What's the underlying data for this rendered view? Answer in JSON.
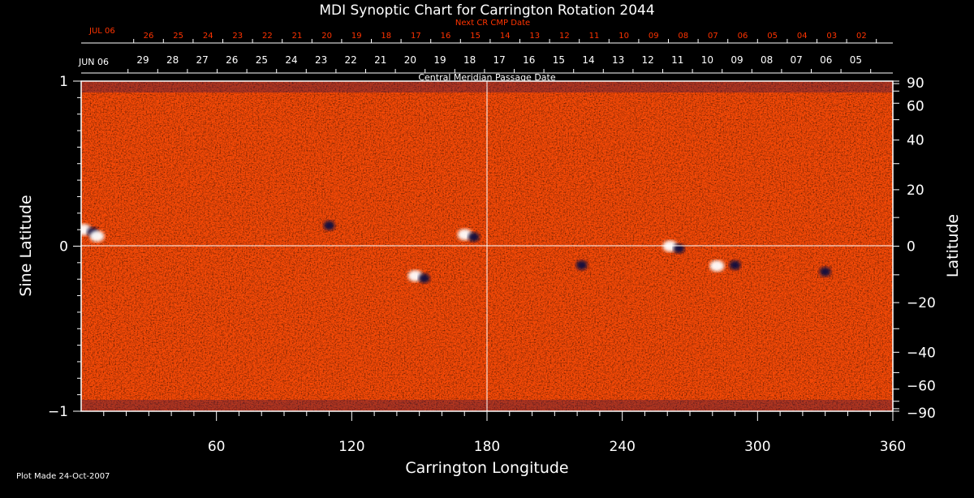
{
  "chart_data": {
    "type": "heatmap",
    "title": "MDI Synoptic Chart for Carrington Rotation 2044",
    "xlabel": "Carrington Longitude",
    "ylabel": "Sine Latitude",
    "y2label": "Latitude",
    "xlim": [
      0,
      360
    ],
    "ylim": [
      -1,
      1
    ],
    "x_ticks": [
      60,
      120,
      180,
      240,
      300,
      360
    ],
    "y_ticks": [
      {
        "value": 1,
        "label": "1"
      },
      {
        "value": 0,
        "label": "0"
      },
      {
        "value": -1,
        "label": "−1"
      }
    ],
    "lat_ticks": [
      {
        "deg": 90,
        "label": "90"
      },
      {
        "deg": 60,
        "label": "60"
      },
      {
        "deg": 40,
        "label": "40"
      },
      {
        "deg": 20,
        "label": "20"
      },
      {
        "deg": 0,
        "label": "0"
      },
      {
        "deg": -20,
        "label": "−20"
      },
      {
        "deg": -40,
        "label": "−40"
      },
      {
        "deg": -60,
        "label": "−60"
      },
      {
        "deg": -90,
        "label": "−90"
      }
    ],
    "cmp_axis_label": "Central Meridian Passage Date",
    "cmp_month_label": "JUN 06",
    "cmp_dates": [
      "29",
      "28",
      "27",
      "26",
      "25",
      "24",
      "23",
      "22",
      "21",
      "20",
      "19",
      "18",
      "17",
      "16",
      "15",
      "14",
      "13",
      "12",
      "11",
      "10",
      "09",
      "08",
      "07",
      "06",
      "05"
    ],
    "next_cr_label": "Next CR CMP Date",
    "next_cr_month_label": "JUL 06",
    "next_cr_dates": [
      "26",
      "25",
      "24",
      "23",
      "22",
      "21",
      "20",
      "19",
      "18",
      "17",
      "16",
      "15",
      "14",
      "13",
      "12",
      "11",
      "10",
      "09",
      "08",
      "07",
      "06",
      "05",
      "04",
      "03",
      "02"
    ],
    "active_regions": [
      {
        "lon": 3,
        "sinlat": 0.1,
        "polarity": "mixed"
      },
      {
        "lon": 7,
        "sinlat": 0.06,
        "polarity": "positive"
      },
      {
        "lon": 110,
        "sinlat": 0.14,
        "polarity": "negative"
      },
      {
        "lon": 150,
        "sinlat": -0.18,
        "polarity": "mixed"
      },
      {
        "lon": 172,
        "sinlat": 0.07,
        "polarity": "mixed"
      },
      {
        "lon": 222,
        "sinlat": -0.1,
        "polarity": "negative"
      },
      {
        "lon": 263,
        "sinlat": 0.0,
        "polarity": "mixed"
      },
      {
        "lon": 282,
        "sinlat": -0.12,
        "polarity": "positive"
      },
      {
        "lon": 290,
        "sinlat": -0.1,
        "polarity": "negative"
      },
      {
        "lon": 330,
        "sinlat": -0.14,
        "polarity": "negative"
      }
    ],
    "colors": {
      "background": "#ff4500",
      "positive": "#ffffff",
      "negative": "#101040",
      "axis": "#ffffff",
      "top_axis": "#ff3300"
    }
  },
  "footer": {
    "plot_made": "Plot Made 24-Oct-2007"
  }
}
